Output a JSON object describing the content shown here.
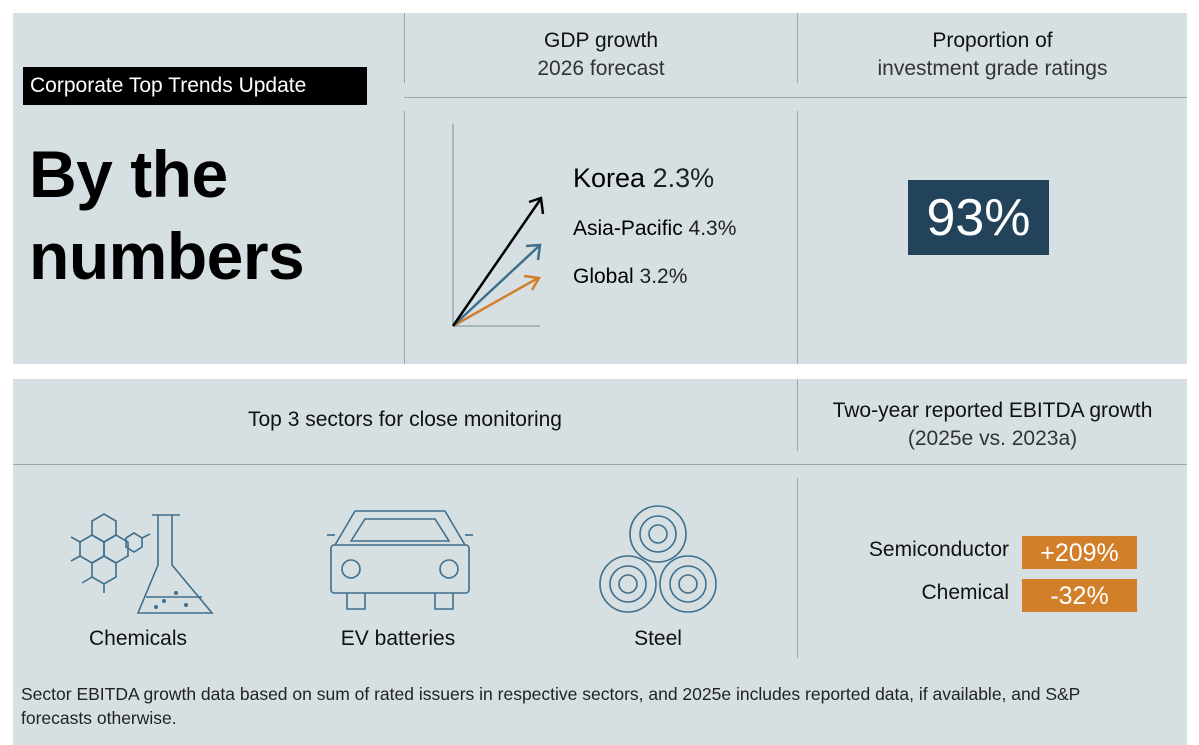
{
  "header": {
    "tag": "Corporate Top Trends Update",
    "headline_line1": "By the",
    "headline_line2": "numbers"
  },
  "gdp": {
    "title": "GDP growth",
    "subtitle": "2026 forecast",
    "items": [
      {
        "region": "Korea",
        "value": "2.3%",
        "color": "#000000"
      },
      {
        "region": "Asia-Pacific",
        "value": "4.3%",
        "color": "#3f6f8c"
      },
      {
        "region": "Global",
        "value": "3.2%",
        "color": "#d27f2a"
      }
    ]
  },
  "investment_grade": {
    "title": "Proportion of",
    "subtitle": "investment grade ratings",
    "value": "93%"
  },
  "sectors": {
    "title": "Top 3 sectors for close monitoring",
    "items": [
      {
        "label": "Chemicals",
        "icon": "chemicals-icon"
      },
      {
        "label": "EV batteries",
        "icon": "car-icon"
      },
      {
        "label": "Steel",
        "icon": "steel-coils-icon"
      }
    ]
  },
  "ebitda": {
    "title": "Two-year reported EBITDA growth",
    "subtitle": "(2025e vs. 2023a)",
    "items": [
      {
        "sector": "Semiconductor",
        "value": "+209%"
      },
      {
        "sector": "Chemical",
        "value": "-32%"
      }
    ],
    "accent_color": "#d27f2a"
  },
  "footnote": "Sector EBITDA growth data based on sum of rated issuers in respective sectors, and 2025e includes reported data, if available, and S&P forecasts otherwise.",
  "colors": {
    "panel": "#d6e0e3",
    "navy": "#22435a",
    "orange": "#d27f2a",
    "icon_stroke": "#3f6f8c"
  }
}
